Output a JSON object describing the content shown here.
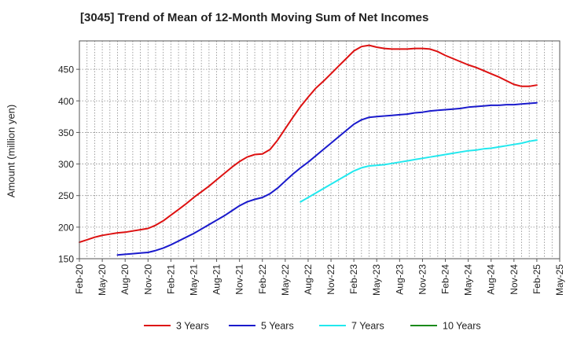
{
  "chart_data": {
    "type": "line",
    "title": "[3045]  Trend of Mean of 12-Month Moving Sum of Net Incomes",
    "xlabel": "",
    "ylabel": "Amount (million yen)",
    "ylim": [
      150,
      495
    ],
    "yticks": [
      150,
      200,
      250,
      300,
      350,
      400,
      450
    ],
    "xticks": [
      "Feb-20",
      "May-20",
      "Aug-20",
      "Nov-20",
      "Feb-21",
      "May-21",
      "Aug-21",
      "Nov-21",
      "Feb-22",
      "May-22",
      "Aug-22",
      "Nov-22",
      "Feb-23",
      "May-23",
      "Aug-23",
      "Nov-23",
      "Feb-24",
      "May-24",
      "Aug-24",
      "Nov-24",
      "Feb-25",
      "May-25"
    ],
    "grid": true,
    "legend_position": "bottom",
    "series": [
      {
        "name": "3 Years",
        "color": "#dd1111",
        "x": [
          "Feb-20",
          "Mar-20",
          "Apr-20",
          "May-20",
          "Jun-20",
          "Jul-20",
          "Aug-20",
          "Sep-20",
          "Oct-20",
          "Nov-20",
          "Dec-20",
          "Jan-21",
          "Feb-21",
          "Mar-21",
          "Apr-21",
          "May-21",
          "Jun-21",
          "Jul-21",
          "Aug-21",
          "Sep-21",
          "Oct-21",
          "Nov-21",
          "Dec-21",
          "Jan-22",
          "Feb-22",
          "Mar-22",
          "Apr-22",
          "May-22",
          "Jun-22",
          "Jul-22",
          "Aug-22",
          "Sep-22",
          "Oct-22",
          "Nov-22",
          "Dec-22",
          "Jan-23",
          "Feb-23",
          "Mar-23",
          "Apr-23",
          "May-23",
          "Jun-23",
          "Jul-23",
          "Aug-23",
          "Sep-23",
          "Oct-23",
          "Nov-23",
          "Dec-23",
          "Jan-24",
          "Feb-24",
          "Mar-24",
          "Apr-24",
          "May-24",
          "Jun-24",
          "Jul-24",
          "Aug-24",
          "Sep-24",
          "Oct-24",
          "Nov-24",
          "Dec-24",
          "Jan-25",
          "Feb-25"
        ],
        "values": [
          176,
          180,
          184,
          187,
          189,
          191,
          192,
          194,
          196,
          198,
          203,
          210,
          219,
          228,
          237,
          247,
          256,
          265,
          275,
          285,
          295,
          304,
          311,
          315,
          316,
          323,
          338,
          356,
          374,
          391,
          406,
          420,
          431,
          443,
          455,
          467,
          479,
          486,
          488,
          485,
          483,
          482,
          482,
          482,
          483,
          483,
          482,
          478,
          472,
          467,
          462,
          457,
          453,
          448,
          443,
          438,
          432,
          426,
          423,
          423,
          425
        ]
      },
      {
        "name": "5 Years",
        "color": "#1a1acc",
        "x": [
          "Jul-20",
          "Aug-20",
          "Sep-20",
          "Oct-20",
          "Nov-20",
          "Dec-20",
          "Jan-21",
          "Feb-21",
          "Mar-21",
          "Apr-21",
          "May-21",
          "Jun-21",
          "Jul-21",
          "Aug-21",
          "Sep-21",
          "Oct-21",
          "Nov-21",
          "Dec-21",
          "Jan-22",
          "Feb-22",
          "Mar-22",
          "Apr-22",
          "May-22",
          "Jun-22",
          "Jul-22",
          "Aug-22",
          "Sep-22",
          "Oct-22",
          "Nov-22",
          "Dec-22",
          "Jan-23",
          "Feb-23",
          "Mar-23",
          "Apr-23",
          "May-23",
          "Jun-23",
          "Jul-23",
          "Aug-23",
          "Sep-23",
          "Oct-23",
          "Nov-23",
          "Dec-23",
          "Jan-24",
          "Feb-24",
          "Mar-24",
          "Apr-24",
          "May-24",
          "Jun-24",
          "Jul-24",
          "Aug-24",
          "Sep-24",
          "Oct-24",
          "Nov-24",
          "Dec-24",
          "Jan-25",
          "Feb-25"
        ],
        "values": [
          156,
          157,
          158,
          159,
          160,
          163,
          167,
          172,
          178,
          184,
          190,
          197,
          204,
          211,
          218,
          226,
          234,
          240,
          244,
          247,
          253,
          262,
          273,
          284,
          294,
          303,
          313,
          323,
          333,
          343,
          353,
          363,
          370,
          374,
          375,
          376,
          377,
          378,
          379,
          381,
          382,
          384,
          385,
          386,
          387,
          388,
          390,
          391,
          392,
          393,
          393,
          394,
          394,
          395,
          396,
          397
        ]
      },
      {
        "name": "7 Years",
        "color": "#22e8ee",
        "x": [
          "Jul-22",
          "Aug-22",
          "Sep-22",
          "Oct-22",
          "Nov-22",
          "Dec-22",
          "Jan-23",
          "Feb-23",
          "Mar-23",
          "Apr-23",
          "May-23",
          "Jun-23",
          "Jul-23",
          "Aug-23",
          "Sep-23",
          "Oct-23",
          "Nov-23",
          "Dec-23",
          "Jan-24",
          "Feb-24",
          "Mar-24",
          "Apr-24",
          "May-24",
          "Jun-24",
          "Jul-24",
          "Aug-24",
          "Sep-24",
          "Oct-24",
          "Nov-24",
          "Dec-24",
          "Jan-25",
          "Feb-25"
        ],
        "values": [
          240,
          247,
          254,
          261,
          268,
          275,
          282,
          289,
          294,
          297,
          298,
          299,
          301,
          303,
          305,
          307,
          309,
          311,
          313,
          315,
          317,
          319,
          321,
          322,
          324,
          325,
          327,
          329,
          331,
          333,
          336,
          338
        ]
      },
      {
        "name": "10 Years",
        "color": "#1a8a1a",
        "x": [],
        "values": []
      }
    ]
  }
}
